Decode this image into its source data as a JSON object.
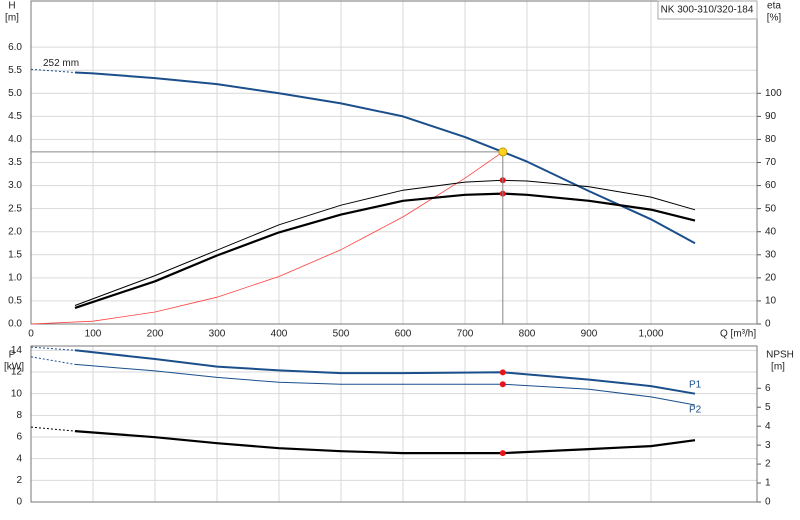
{
  "chart_data": [
    {
      "type": "line",
      "title": "NK 300-310/320-184",
      "ylabel": "H",
      "yunit": "[m]",
      "y2label": "eta",
      "y2unit": "[%]",
      "xlabel": "Q [m³/h]",
      "xlim": [
        0,
        1171
      ],
      "xticks": [
        0,
        100,
        200,
        300,
        400,
        500,
        600,
        700,
        800,
        900,
        {
          "value": 1000,
          "label": "1,000"
        }
      ],
      "ylim": [
        0,
        7
      ],
      "yticks": [
        {
          "value": 0,
          "label": "0.0"
        },
        {
          "value": 0.5,
          "label": "0.5"
        },
        {
          "value": 1,
          "label": "1.0"
        },
        {
          "value": 1.5,
          "label": "1.5"
        },
        {
          "value": 2,
          "label": "2.0"
        },
        {
          "value": 2.5,
          "label": "2.5"
        },
        {
          "value": 3,
          "label": "3.0"
        },
        {
          "value": 3.5,
          "label": "3.5"
        },
        {
          "value": 4,
          "label": "4.0"
        },
        {
          "value": 4.5,
          "label": "4.5"
        },
        {
          "value": 5,
          "label": "5.0"
        },
        {
          "value": 5.5,
          "label": "5.5"
        },
        {
          "value": 6,
          "label": "6.0"
        }
      ],
      "y2lim": [
        0,
        140
      ],
      "y2ticks": [
        0,
        10,
        20,
        30,
        40,
        50,
        60,
        70,
        80,
        90,
        100
      ],
      "grid": true,
      "series": [
        {
          "style": "dashed",
          "color": "#1a4f8b",
          "width": 1,
          "x": [
            0,
            71
          ],
          "values": [
            5.52,
            5.45
          ]
        },
        {
          "name": "252 mm",
          "style": "line",
          "color": "#1a4f8b",
          "width": 2,
          "x": [
            71,
            100,
            200,
            300,
            400,
            500,
            600,
            700,
            761,
            800,
            900,
            1000,
            1071
          ],
          "values": [
            5.45,
            5.43,
            5.33,
            5.2,
            5.0,
            4.78,
            4.5,
            4.05,
            3.73,
            3.52,
            2.88,
            2.27,
            1.75
          ]
        },
        {
          "style": "line",
          "color": "#ff4040",
          "width": 0.8,
          "x": [
            0,
            100,
            200,
            300,
            400,
            500,
            600,
            700,
            761
          ],
          "values": [
            0,
            0.06,
            0.26,
            0.58,
            1.03,
            1.61,
            2.32,
            3.16,
            3.73
          ]
        },
        {
          "style": "line",
          "color": "#000000",
          "width": 1,
          "axis": "y2",
          "x": [
            71,
            200,
            300,
            400,
            500,
            600,
            700,
            761,
            800,
            900,
            1000,
            1071
          ],
          "values": [
            8,
            21,
            32,
            43,
            51.5,
            58,
            61.5,
            62.3,
            62,
            59.5,
            55,
            49.5
          ]
        },
        {
          "style": "line",
          "color": "#000000",
          "width": 2.2,
          "axis": "y2",
          "x": [
            71,
            200,
            300,
            400,
            500,
            600,
            700,
            761,
            800,
            900,
            1000,
            1071
          ],
          "values": [
            7,
            18.5,
            29.7,
            39.7,
            47.4,
            53.4,
            56,
            56.5,
            56,
            53.4,
            49.6,
            44.8
          ]
        },
        {
          "style": "points",
          "color": "#e8141b",
          "axis": "y2",
          "x": [
            761,
            761
          ],
          "values": [
            62.3,
            56.5
          ]
        },
        {
          "style": "points",
          "color": "#ffd21f",
          "guides": true,
          "x": [
            761
          ],
          "values": [
            3.73
          ]
        }
      ]
    },
    {
      "type": "line",
      "ylabel": "P",
      "yunit": "[kW]",
      "y2label": "NPSH",
      "y2unit": "[m]",
      "ylim": [
        0,
        14.4
      ],
      "yticks": [
        0,
        2,
        4,
        6,
        8,
        10,
        12,
        14
      ],
      "y2lim": [
        0,
        8.23
      ],
      "y2ticks": [
        0,
        1,
        2,
        3,
        4,
        5,
        6
      ],
      "grid": true,
      "series": [
        {
          "style": "dashed",
          "color": "#1a4f8b",
          "width": 1,
          "x": [
            0,
            71
          ],
          "values": [
            14.3,
            14.0
          ]
        },
        {
          "name": "P1",
          "style": "line",
          "color": "#1a4f8b",
          "width": 2,
          "x": [
            71,
            200,
            300,
            400,
            500,
            600,
            761,
            900,
            1000,
            1071
          ],
          "values": [
            14.0,
            13.2,
            12.5,
            12.15,
            11.9,
            11.9,
            11.97,
            11.3,
            10.7,
            10.0
          ]
        },
        {
          "style": "dashed",
          "color": "#1a4f8b",
          "width": 1,
          "x": [
            0,
            71
          ],
          "values": [
            13.4,
            12.7
          ]
        },
        {
          "name": "P2",
          "style": "line",
          "color": "#1a4f8b",
          "width": 1,
          "x": [
            71,
            200,
            300,
            400,
            500,
            600,
            761,
            900,
            1000,
            1071
          ],
          "values": [
            12.7,
            12.1,
            11.5,
            11.05,
            10.87,
            10.87,
            10.87,
            10.4,
            9.7,
            8.95
          ]
        },
        {
          "style": "dashed",
          "color": "#000000",
          "width": 1,
          "axis": "y2",
          "x": [
            0,
            71
          ],
          "values": [
            3.95,
            3.74
          ]
        },
        {
          "style": "line",
          "color": "#000000",
          "width": 2.2,
          "axis": "y2",
          "x": [
            71,
            200,
            300,
            400,
            500,
            600,
            761,
            900,
            1000,
            1071
          ],
          "values": [
            3.74,
            3.42,
            3.1,
            2.84,
            2.68,
            2.58,
            2.58,
            2.79,
            2.95,
            3.26
          ]
        },
        {
          "style": "points",
          "color": "#e8141b",
          "x": [
            761,
            761
          ],
          "values": [
            11.97,
            10.87
          ]
        },
        {
          "style": "points",
          "color": "#e8141b",
          "axis": "y2",
          "x": [
            761
          ],
          "values": [
            2.58
          ]
        }
      ]
    }
  ]
}
